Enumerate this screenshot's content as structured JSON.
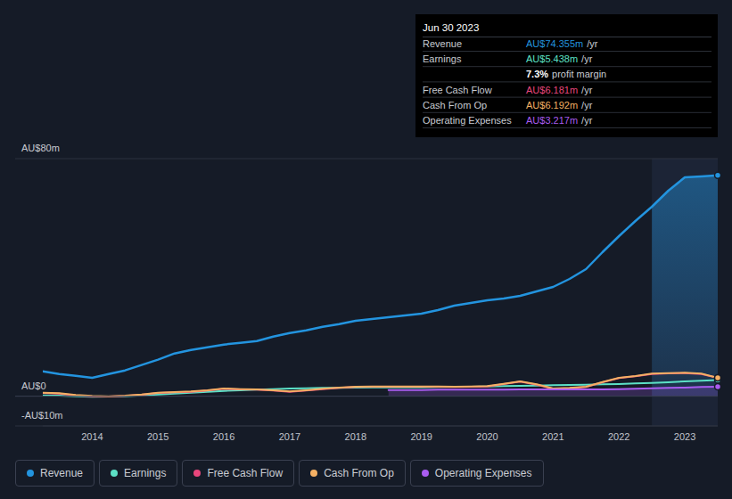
{
  "chart_data": {
    "type": "line",
    "x": [
      2013.25,
      2013.5,
      2013.75,
      2014,
      2014.25,
      2014.5,
      2014.75,
      2015,
      2015.25,
      2015.5,
      2015.75,
      2016,
      2016.25,
      2016.5,
      2016.75,
      2017,
      2017.25,
      2017.5,
      2017.75,
      2018,
      2018.25,
      2018.5,
      2018.75,
      2019,
      2019.25,
      2019.5,
      2019.75,
      2020,
      2020.25,
      2020.5,
      2020.75,
      2021,
      2021.25,
      2021.5,
      2021.75,
      2022,
      2022.25,
      2022.5,
      2022.75,
      2023,
      2023.25,
      2023.5
    ],
    "xlim": [
      2013.25,
      2023.5
    ],
    "xticks": [
      2014,
      2015,
      2016,
      2017,
      2018,
      2019,
      2020,
      2021,
      2022,
      2023
    ],
    "ylim": [
      -10,
      80
    ],
    "yticks": [
      {
        "value": -10,
        "label": "-AU$10m"
      },
      {
        "value": 0,
        "label": "AU$0"
      },
      {
        "value": 80,
        "label": "AU$80m"
      }
    ],
    "grid": true,
    "legend": "bottom",
    "highlight": {
      "x": [
        2022.5,
        2023.5
      ]
    },
    "annotation": {
      "title": "Jun 30 2023",
      "rows": [
        {
          "label": "Revenue",
          "value": "AU$74.355m",
          "unit": "/yr"
        },
        {
          "label": "Earnings",
          "value": "AU$5.438m",
          "unit": "/yr"
        },
        {
          "label": "Free Cash Flow",
          "value": "AU$6.181m",
          "unit": "/yr"
        },
        {
          "label": "Cash From Op",
          "value": "AU$6.192m",
          "unit": "/yr"
        },
        {
          "label": "Operating Expenses",
          "value": "AU$3.217m",
          "unit": "/yr"
        }
      ],
      "margin": {
        "value": "7.3%",
        "text": "profit margin"
      }
    },
    "series": [
      {
        "name": "Revenue",
        "color": "#2394df",
        "type": "area",
        "values": [
          8.4,
          7.5,
          6.9,
          6.2,
          7.5,
          8.7,
          10.5,
          12.3,
          14.4,
          15.6,
          16.5,
          17.4,
          18.0,
          18.6,
          20.1,
          21.3,
          22.2,
          23.4,
          24.3,
          25.4,
          26.0,
          26.6,
          27.2,
          27.8,
          29.0,
          30.5,
          31.4,
          32.3,
          32.9,
          33.8,
          35.3,
          36.8,
          39.5,
          42.8,
          48.5,
          53.9,
          59.0,
          63.8,
          69.2,
          73.7,
          74.0,
          74.355
        ]
      },
      {
        "name": "Earnings",
        "color": "#5ce0c6",
        "type": "line",
        "values": [
          0.3,
          0.2,
          0.0,
          -0.2,
          -0.1,
          0.0,
          0.3,
          0.6,
          0.9,
          1.2,
          1.5,
          1.8,
          2.0,
          2.2,
          2.4,
          2.6,
          2.7,
          2.8,
          2.8,
          2.9,
          3.0,
          3.0,
          3.0,
          3.0,
          3.1,
          3.2,
          3.2,
          3.3,
          3.4,
          3.5,
          3.6,
          3.7,
          3.8,
          3.9,
          4.0,
          4.1,
          4.3,
          4.5,
          4.7,
          5.0,
          5.2,
          5.438
        ]
      },
      {
        "name": "Free Cash Flow",
        "color": "#e8467c",
        "type": "line",
        "values": [
          1.1,
          0.9,
          0.3,
          0.0,
          -0.1,
          0.1,
          0.5,
          1.1,
          1.3,
          1.5,
          1.9,
          2.5,
          2.3,
          2.2,
          1.9,
          1.5,
          1.9,
          2.4,
          2.8,
          3.1,
          3.2,
          3.2,
          3.2,
          3.2,
          3.2,
          3.1,
          3.2,
          3.3,
          4.1,
          4.9,
          3.9,
          2.5,
          2.7,
          3.1,
          4.7,
          6.1,
          6.7,
          7.5,
          7.7,
          7.8,
          7.5,
          6.181
        ]
      },
      {
        "name": "Cash From Op",
        "color": "#f4b064",
        "type": "line",
        "values": [
          1.2,
          1.0,
          0.4,
          0.1,
          0.0,
          0.2,
          0.6,
          1.2,
          1.4,
          1.6,
          2.0,
          2.6,
          2.4,
          2.3,
          2.0,
          1.6,
          2.0,
          2.5,
          2.9,
          3.2,
          3.3,
          3.3,
          3.3,
          3.3,
          3.3,
          3.2,
          3.3,
          3.4,
          4.2,
          5.0,
          4.0,
          2.6,
          2.8,
          3.2,
          4.8,
          6.2,
          6.8,
          7.6,
          7.8,
          7.9,
          7.6,
          6.192
        ]
      },
      {
        "name": "Operating Expenses",
        "color": "#a95cf0",
        "type": "area",
        "values": [
          null,
          null,
          null,
          null,
          null,
          null,
          null,
          null,
          null,
          null,
          null,
          null,
          null,
          null,
          null,
          null,
          null,
          null,
          null,
          null,
          null,
          2.1,
          2.1,
          2.1,
          2.2,
          2.2,
          2.2,
          2.2,
          2.2,
          2.3,
          2.3,
          2.3,
          2.3,
          2.3,
          2.3,
          2.4,
          2.5,
          2.7,
          2.8,
          2.9,
          3.1,
          3.217
        ]
      }
    ]
  }
}
